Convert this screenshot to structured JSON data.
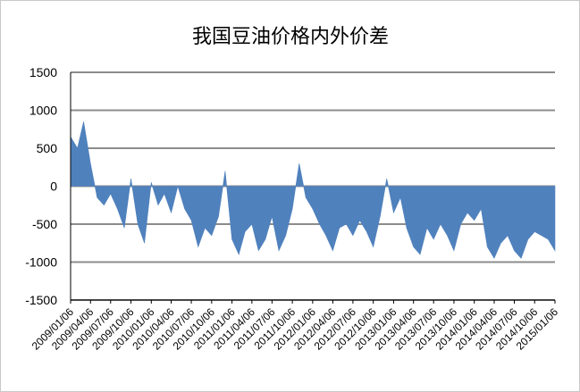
{
  "chart_data": {
    "type": "area",
    "title": "我国豆油价格内外价差",
    "xlabel": "",
    "ylabel": "",
    "ylim": [
      -1500,
      1500
    ],
    "yticks": [
      1500,
      1000,
      500,
      0,
      -500,
      -1000,
      -1500
    ],
    "grid": true,
    "legend": "none",
    "colors": {
      "area": "#4f81bd",
      "grid": "#8c8c8c",
      "axis": "#000000"
    },
    "x_tick_labels": [
      "2009/01/06",
      "2009/04/06",
      "2009/07/06",
      "2009/10/06",
      "2010/01/06",
      "2010/04/06",
      "2010/07/06",
      "2010/10/06",
      "2011/01/06",
      "2011/04/06",
      "2011/07/06",
      "2011/10/06",
      "2012/01/06",
      "2012/04/06",
      "2012/07/06",
      "2012/10/06",
      "2013/01/06",
      "2013/04/06",
      "2013/07/06",
      "2013/10/06",
      "2014/01/06",
      "2014/04/06",
      "2014/07/06",
      "2014/10/06",
      "2015/01/06"
    ],
    "x": [
      "2009/01/06",
      "2009/02/06",
      "2009/03/06",
      "2009/04/06",
      "2009/05/06",
      "2009/06/06",
      "2009/07/06",
      "2009/08/06",
      "2009/09/06",
      "2009/10/06",
      "2009/11/06",
      "2009/12/06",
      "2010/01/06",
      "2010/02/06",
      "2010/03/06",
      "2010/04/06",
      "2010/05/06",
      "2010/06/06",
      "2010/07/06",
      "2010/08/06",
      "2010/09/06",
      "2010/10/06",
      "2010/11/06",
      "2010/12/06",
      "2011/01/06",
      "2011/02/06",
      "2011/03/06",
      "2011/04/06",
      "2011/05/06",
      "2011/06/06",
      "2011/07/06",
      "2011/08/06",
      "2011/09/06",
      "2011/10/06",
      "2011/11/06",
      "2011/12/06",
      "2012/01/06",
      "2012/02/06",
      "2012/03/06",
      "2012/04/06",
      "2012/05/06",
      "2012/06/06",
      "2012/07/06",
      "2012/08/06",
      "2012/09/06",
      "2012/10/06",
      "2012/11/06",
      "2012/12/06",
      "2013/01/06",
      "2013/02/06",
      "2013/03/06",
      "2013/04/06",
      "2013/05/06",
      "2013/06/06",
      "2013/07/06",
      "2013/08/06",
      "2013/09/06",
      "2013/10/06",
      "2013/11/06",
      "2013/12/06",
      "2014/01/06",
      "2014/02/06",
      "2014/03/06",
      "2014/04/06",
      "2014/05/06",
      "2014/06/06",
      "2014/07/06",
      "2014/08/06",
      "2014/09/06",
      "2014/10/06",
      "2014/11/06",
      "2014/12/06",
      "2015/01/06"
    ],
    "values": [
      650,
      500,
      850,
      300,
      -150,
      -250,
      -100,
      -300,
      -550,
      100,
      -500,
      -750,
      50,
      -250,
      -100,
      -350,
      0,
      -300,
      -450,
      -800,
      -550,
      -650,
      -400,
      200,
      -700,
      -900,
      -600,
      -500,
      -850,
      -700,
      -400,
      -850,
      -650,
      -300,
      300,
      -150,
      -300,
      -500,
      -650,
      -850,
      -550,
      -500,
      -650,
      -450,
      -600,
      -800,
      -400,
      100,
      -350,
      -150,
      -550,
      -800,
      -900,
      -550,
      -700,
      -500,
      -650,
      -850,
      -500,
      -350,
      -450,
      -300,
      -800,
      -950,
      -750,
      -650,
      -850,
      -950,
      -700,
      -600,
      -650,
      -700,
      -850
    ]
  }
}
